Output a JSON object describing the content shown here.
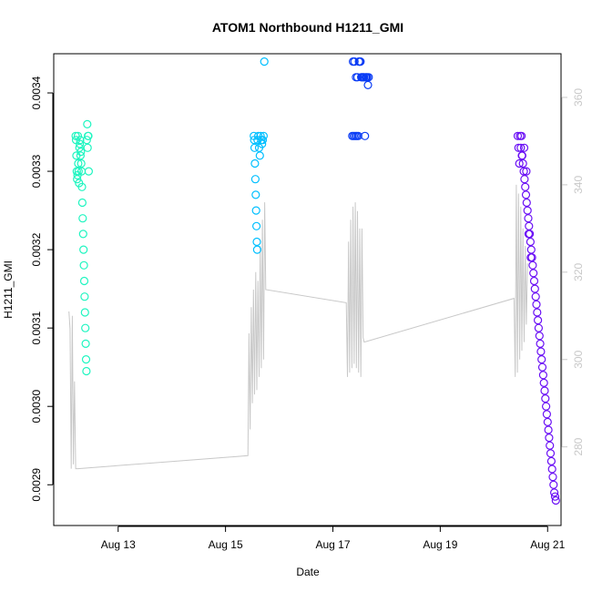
{
  "chart_data": {
    "type": "scatter",
    "title": "ATOM1 Northbound H1211_GMI",
    "xlabel": "Date",
    "ylabel": "H1211_GMI",
    "y2label": "",
    "x_range": [
      "2019-08-11T19:12",
      "2019-08-21T06:00"
    ],
    "x_ticks": [
      {
        "date": "2019-08-13",
        "label": "Aug 13"
      },
      {
        "date": "2019-08-15",
        "label": "Aug 15"
      },
      {
        "date": "2019-08-17",
        "label": "Aug 17"
      },
      {
        "date": "2019-08-19",
        "label": "Aug 19"
      },
      {
        "date": "2019-08-21",
        "label": "Aug 21"
      }
    ],
    "ylim": [
      0.002848,
      0.00345
    ],
    "y_ticks": [
      {
        "value": 0.0029,
        "label": "0.0029"
      },
      {
        "value": 0.003,
        "label": "0.0030"
      },
      {
        "value": 0.0031,
        "label": "0.0031"
      },
      {
        "value": 0.0032,
        "label": "0.0032"
      },
      {
        "value": 0.0033,
        "label": "0.0033"
      },
      {
        "value": 0.0034,
        "label": "0.0034"
      }
    ],
    "y2lim": [
      262,
      370
    ],
    "y2_ticks": [
      {
        "value": 280,
        "label": "280"
      },
      {
        "value": 300,
        "label": "300"
      },
      {
        "value": 320,
        "label": "320"
      },
      {
        "value": 340,
        "label": "340"
      },
      {
        "value": 360,
        "label": "360"
      }
    ],
    "grid": false,
    "legend": "none",
    "series": [
      {
        "color": "#1ef5c0",
        "points": [
          [
            "2019-08-12T05:00",
            0.003345
          ],
          [
            "2019-08-12T05:10",
            0.00334
          ],
          [
            "2019-08-12T05:20",
            0.00332
          ],
          [
            "2019-08-12T05:30",
            0.0033
          ],
          [
            "2019-08-12T05:40",
            0.00329
          ],
          [
            "2019-08-12T05:50",
            0.003295
          ],
          [
            "2019-08-12T06:00",
            0.003345
          ],
          [
            "2019-08-12T06:10",
            0.00331
          ],
          [
            "2019-08-12T06:20",
            0.0033
          ],
          [
            "2019-08-12T06:30",
            0.003285
          ],
          [
            "2019-08-12T06:40",
            0.00333
          ],
          [
            "2019-08-12T06:50",
            0.003335
          ],
          [
            "2019-08-12T07:00",
            0.00334
          ],
          [
            "2019-08-12T07:10",
            0.00332
          ],
          [
            "2019-08-12T07:20",
            0.003325
          ],
          [
            "2019-08-12T07:30",
            0.00331
          ],
          [
            "2019-08-12T07:40",
            0.0033
          ],
          [
            "2019-08-12T07:50",
            0.00328
          ],
          [
            "2019-08-12T08:00",
            0.00326
          ],
          [
            "2019-08-12T08:10",
            0.00324
          ],
          [
            "2019-08-12T08:20",
            0.00322
          ],
          [
            "2019-08-12T08:30",
            0.0032
          ],
          [
            "2019-08-12T08:40",
            0.00318
          ],
          [
            "2019-08-12T08:50",
            0.00316
          ],
          [
            "2019-08-12T09:00",
            0.00314
          ],
          [
            "2019-08-12T09:10",
            0.00312
          ],
          [
            "2019-08-12T09:20",
            0.0031
          ],
          [
            "2019-08-12T09:30",
            0.00308
          ],
          [
            "2019-08-12T09:40",
            0.00306
          ],
          [
            "2019-08-12T09:50",
            0.003045
          ],
          [
            "2019-08-12T10:00",
            0.00334
          ],
          [
            "2019-08-12T10:10",
            0.00336
          ],
          [
            "2019-08-12T10:20",
            0.00333
          ],
          [
            "2019-08-12T10:30",
            0.003345
          ],
          [
            "2019-08-12T10:40",
            0.003345
          ],
          [
            "2019-08-12T10:50",
            0.0033
          ]
        ]
      },
      {
        "color": "#00bfff",
        "points": [
          [
            "2019-08-15T12:40",
            0.003345
          ],
          [
            "2019-08-15T12:50",
            0.00334
          ],
          [
            "2019-08-15T13:00",
            0.00333
          ],
          [
            "2019-08-15T13:10",
            0.00331
          ],
          [
            "2019-08-15T13:20",
            0.00329
          ],
          [
            "2019-08-15T13:30",
            0.00327
          ],
          [
            "2019-08-15T13:40",
            0.00325
          ],
          [
            "2019-08-15T13:50",
            0.00323
          ],
          [
            "2019-08-15T14:00",
            0.00321
          ],
          [
            "2019-08-15T14:10",
            0.0032
          ],
          [
            "2019-08-15T14:20",
            0.00334
          ],
          [
            "2019-08-15T14:40",
            0.003345
          ],
          [
            "2019-08-15T15:00",
            0.00333
          ],
          [
            "2019-08-15T15:20",
            0.00332
          ],
          [
            "2019-08-15T15:40",
            0.003345
          ],
          [
            "2019-08-15T16:00",
            0.00334
          ],
          [
            "2019-08-15T16:20",
            0.003335
          ],
          [
            "2019-08-15T16:40",
            0.00334
          ],
          [
            "2019-08-15T17:00",
            0.003345
          ],
          [
            "2019-08-15T17:20",
            0.00344
          ]
        ]
      },
      {
        "color": "#0a3cf5",
        "points": [
          [
            "2019-08-17T08:40",
            0.003345
          ],
          [
            "2019-08-17T09:00",
            0.00344
          ],
          [
            "2019-08-17T09:20",
            0.003345
          ],
          [
            "2019-08-17T09:40",
            0.00344
          ],
          [
            "2019-08-17T10:00",
            0.003345
          ],
          [
            "2019-08-17T10:20",
            0.00342
          ],
          [
            "2019-08-17T10:40",
            0.003345
          ],
          [
            "2019-08-17T11:00",
            0.00342
          ],
          [
            "2019-08-17T11:20",
            0.003345
          ],
          [
            "2019-08-17T11:40",
            0.00344
          ],
          [
            "2019-08-17T12:00",
            0.00344
          ],
          [
            "2019-08-17T12:20",
            0.00344
          ],
          [
            "2019-08-17T12:40",
            0.00342
          ],
          [
            "2019-08-17T13:00",
            0.00342
          ],
          [
            "2019-08-17T13:20",
            0.00342
          ],
          [
            "2019-08-17T13:40",
            0.00342
          ],
          [
            "2019-08-17T14:00",
            0.00342
          ],
          [
            "2019-08-17T14:20",
            0.003345
          ],
          [
            "2019-08-17T14:40",
            0.00342
          ],
          [
            "2019-08-17T15:00",
            0.00342
          ],
          [
            "2019-08-17T15:20",
            0.00342
          ],
          [
            "2019-08-17T15:40",
            0.00341
          ],
          [
            "2019-08-17T16:00",
            0.00342
          ]
        ]
      },
      {
        "color": "#6a0ff5",
        "points": [
          [
            "2019-08-20T10:40",
            0.003345
          ],
          [
            "2019-08-20T11:00",
            0.00333
          ],
          [
            "2019-08-20T11:20",
            0.00331
          ],
          [
            "2019-08-20T11:40",
            0.003345
          ],
          [
            "2019-08-20T12:00",
            0.00333
          ],
          [
            "2019-08-20T12:20",
            0.003345
          ],
          [
            "2019-08-20T12:40",
            0.00332
          ],
          [
            "2019-08-20T13:00",
            0.00331
          ],
          [
            "2019-08-20T13:20",
            0.0033
          ],
          [
            "2019-08-20T13:40",
            0.00329
          ],
          [
            "2019-08-20T14:00",
            0.00328
          ],
          [
            "2019-08-20T14:20",
            0.00327
          ],
          [
            "2019-08-20T14:40",
            0.00326
          ],
          [
            "2019-08-20T15:00",
            0.00325
          ],
          [
            "2019-08-20T15:20",
            0.00324
          ],
          [
            "2019-08-20T15:40",
            0.00323
          ],
          [
            "2019-08-20T16:00",
            0.00322
          ],
          [
            "2019-08-20T16:20",
            0.00321
          ],
          [
            "2019-08-20T16:40",
            0.0032
          ],
          [
            "2019-08-20T17:00",
            0.00319
          ],
          [
            "2019-08-20T17:20",
            0.00318
          ],
          [
            "2019-08-20T17:40",
            0.00317
          ],
          [
            "2019-08-20T18:00",
            0.00316
          ],
          [
            "2019-08-20T18:20",
            0.00315
          ],
          [
            "2019-08-20T18:40",
            0.00314
          ],
          [
            "2019-08-20T19:00",
            0.00313
          ],
          [
            "2019-08-20T19:20",
            0.00312
          ],
          [
            "2019-08-20T19:40",
            0.00311
          ],
          [
            "2019-08-20T20:00",
            0.0031
          ],
          [
            "2019-08-20T20:20",
            0.00309
          ],
          [
            "2019-08-20T20:40",
            0.00308
          ],
          [
            "2019-08-20T21:00",
            0.00307
          ],
          [
            "2019-08-20T21:20",
            0.00306
          ],
          [
            "2019-08-20T21:40",
            0.00305
          ],
          [
            "2019-08-20T22:00",
            0.00304
          ],
          [
            "2019-08-20T22:20",
            0.00303
          ],
          [
            "2019-08-20T22:40",
            0.00302
          ],
          [
            "2019-08-20T23:00",
            0.00301
          ],
          [
            "2019-08-20T23:20",
            0.003
          ],
          [
            "2019-08-20T23:40",
            0.00299
          ],
          [
            "2019-08-21T00:00",
            0.00298
          ],
          [
            "2019-08-21T00:20",
            0.00297
          ],
          [
            "2019-08-21T00:40",
            0.00296
          ],
          [
            "2019-08-21T01:00",
            0.00295
          ],
          [
            "2019-08-21T01:20",
            0.00294
          ],
          [
            "2019-08-21T01:40",
            0.00293
          ],
          [
            "2019-08-21T02:00",
            0.00292
          ],
          [
            "2019-08-21T02:20",
            0.00291
          ],
          [
            "2019-08-21T02:40",
            0.0029
          ],
          [
            "2019-08-21T03:00",
            0.00289
          ],
          [
            "2019-08-21T03:20",
            0.002885
          ],
          [
            "2019-08-21T03:40",
            0.00288
          ],
          [
            "2019-08-20T12:30",
            0.00332
          ],
          [
            "2019-08-20T13:30",
            0.00333
          ],
          [
            "2019-08-20T14:30",
            0.0033
          ],
          [
            "2019-08-20T15:30",
            0.00322
          ],
          [
            "2019-08-20T16:30",
            0.00319
          ]
        ]
      }
    ],
    "line_series": {
      "color": "#c8c8c8",
      "axis": "right",
      "points": [
        [
          "2019-08-12T02:00",
          311
        ],
        [
          "2019-08-12T02:30",
          307
        ],
        [
          "2019-08-12T03:00",
          275
        ],
        [
          "2019-08-12T03:30",
          310
        ],
        [
          "2019-08-12T04:00",
          276
        ],
        [
          "2019-08-12T04:30",
          295
        ],
        [
          "2019-08-12T05:00",
          275
        ],
        [
          "2019-08-12T06:00",
          275
        ],
        [
          "2019-08-15T10:00",
          278
        ],
        [
          "2019-08-15T10:30",
          306
        ],
        [
          "2019-08-15T11:00",
          284
        ],
        [
          "2019-08-15T11:30",
          312
        ],
        [
          "2019-08-15T12:00",
          290
        ],
        [
          "2019-08-15T12:30",
          316
        ],
        [
          "2019-08-15T13:00",
          292
        ],
        [
          "2019-08-15T13:30",
          320
        ],
        [
          "2019-08-15T14:00",
          293
        ],
        [
          "2019-08-15T14:30",
          318
        ],
        [
          "2019-08-15T15:00",
          296
        ],
        [
          "2019-08-15T15:30",
          326
        ],
        [
          "2019-08-15T16:00",
          298
        ],
        [
          "2019-08-15T16:30",
          332
        ],
        [
          "2019-08-15T17:00",
          300
        ],
        [
          "2019-08-15T17:30",
          336
        ],
        [
          "2019-08-15T18:00",
          316
        ],
        [
          "2019-08-17T06:00",
          313
        ],
        [
          "2019-08-17T06:30",
          296
        ],
        [
          "2019-08-17T07:00",
          327
        ],
        [
          "2019-08-17T07:30",
          297
        ],
        [
          "2019-08-17T08:00",
          332
        ],
        [
          "2019-08-17T08:30",
          298
        ],
        [
          "2019-08-17T09:00",
          335
        ],
        [
          "2019-08-17T09:30",
          299
        ],
        [
          "2019-08-17T10:00",
          336
        ],
        [
          "2019-08-17T10:30",
          298
        ],
        [
          "2019-08-17T11:00",
          334
        ],
        [
          "2019-08-17T11:30",
          297
        ],
        [
          "2019-08-17T12:00",
          330
        ],
        [
          "2019-08-17T12:30",
          296
        ],
        [
          "2019-08-17T13:00",
          330
        ],
        [
          "2019-08-17T13:30",
          305
        ],
        [
          "2019-08-17T14:00",
          304
        ],
        [
          "2019-08-20T09:00",
          314
        ],
        [
          "2019-08-20T09:30",
          296
        ],
        [
          "2019-08-20T10:00",
          340
        ],
        [
          "2019-08-20T10:30",
          297
        ],
        [
          "2019-08-20T11:00",
          338
        ],
        [
          "2019-08-20T11:30",
          300
        ],
        [
          "2019-08-20T12:00",
          335
        ],
        [
          "2019-08-20T12:30",
          302
        ],
        [
          "2019-08-20T13:00",
          330
        ],
        [
          "2019-08-20T13:30",
          304
        ],
        [
          "2019-08-20T14:00",
          326
        ],
        [
          "2019-08-20T14:30",
          308
        ],
        [
          "2019-08-20T15:00",
          322
        ]
      ]
    }
  }
}
